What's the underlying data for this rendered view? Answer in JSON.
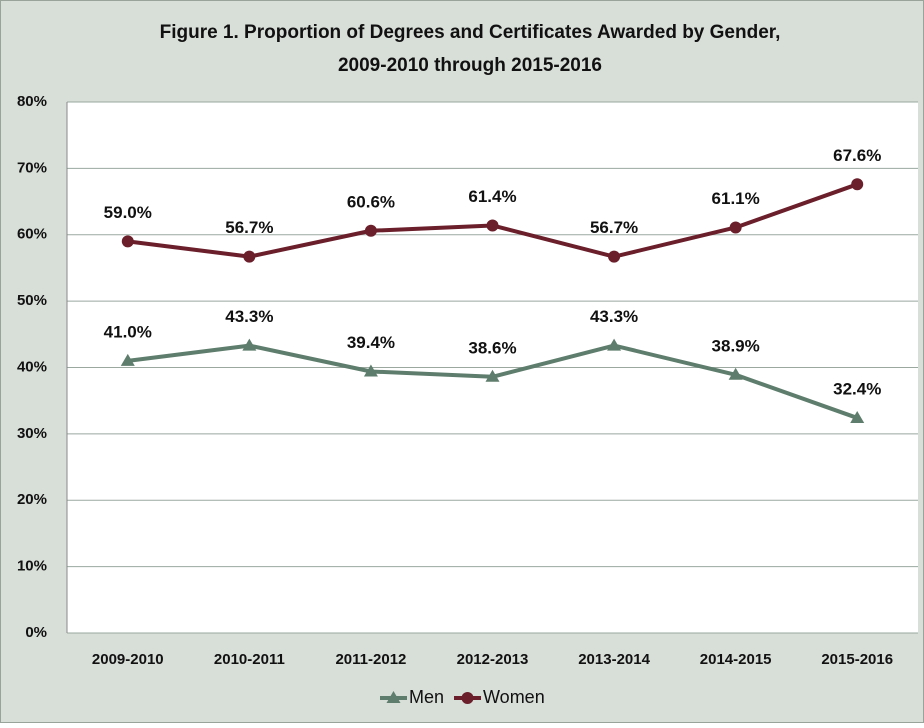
{
  "chart_data": {
    "type": "line",
    "title": [
      "Figure 1. Proportion of Degrees and Certificates Awarded by Gender,",
      "2009-2010 through 2015-2016"
    ],
    "categories": [
      "2009-2010",
      "2010-2011",
      "2011-2012",
      "2012-2013",
      "2013-2014",
      "2014-2015",
      "2015-2016"
    ],
    "series": [
      {
        "name": "Men",
        "color": "#5e7d6c",
        "marker": "triangle",
        "values": [
          41.0,
          43.3,
          39.4,
          38.6,
          43.3,
          38.9,
          32.4
        ],
        "value_labels": [
          "41.0%",
          "43.3%",
          "39.4%",
          "38.6%",
          "43.3%",
          "38.9%",
          "32.4%"
        ]
      },
      {
        "name": "Women",
        "color": "#6a1f2b",
        "marker": "circle",
        "values": [
          59.0,
          56.7,
          60.6,
          61.4,
          56.7,
          61.1,
          67.6
        ],
        "value_labels": [
          "59.0%",
          "56.7%",
          "60.6%",
          "61.4%",
          "56.7%",
          "61.1%",
          "67.6%"
        ]
      }
    ],
    "ylim": [
      0,
      80
    ],
    "yticks": [
      {
        "value": 0,
        "label": "0%"
      },
      {
        "value": 10,
        "label": "10%"
      },
      {
        "value": 20,
        "label": "20%"
      },
      {
        "value": 30,
        "label": "30%"
      },
      {
        "value": 40,
        "label": "40%"
      },
      {
        "value": 50,
        "label": "50%"
      },
      {
        "value": 60,
        "label": "60%"
      },
      {
        "value": 70,
        "label": "70%"
      },
      {
        "value": 80,
        "label": "80%"
      }
    ],
    "grid": true,
    "legend": "bottom"
  }
}
